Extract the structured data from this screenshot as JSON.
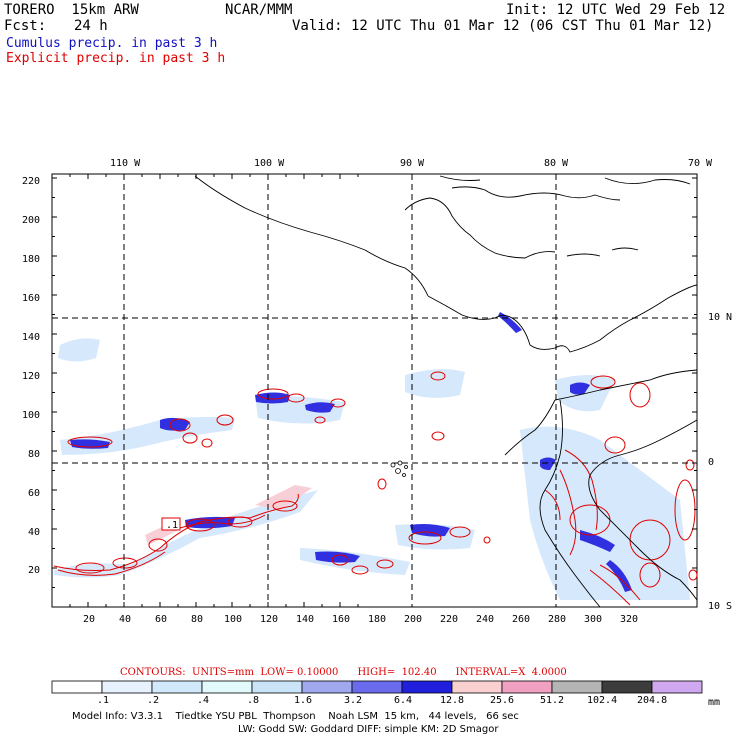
{
  "header": {
    "model": "TORERO  15km ARW",
    "org": "NCAR/MMM",
    "init": "Init: 12 UTC Wed 29 Feb 12",
    "fcst_label": "Fcst:",
    "fcst_value": "24 h",
    "valid": "Valid: 12 UTC Thu 01 Mar 12 (06 CST Thu 01 Mar 12)",
    "cumulus": "Cumulus precip. in past 3 h",
    "explicit": "Explicit precip. in past 3 h"
  },
  "colors": {
    "cumulus_text": "#1010c0",
    "explicit_text": "#e00000",
    "contour": "#e00000"
  },
  "top_lon_labels": [
    "110 W",
    "100 W",
    "90 W",
    "80 W",
    "70 W"
  ],
  "right_lat_labels": [
    "10 N",
    "0",
    "10 S"
  ],
  "y_ticks": [
    "20",
    "40",
    "60",
    "80",
    "100",
    "120",
    "140",
    "160",
    "180",
    "200",
    "220"
  ],
  "x_ticks": [
    "20",
    "40",
    "60",
    "80",
    "100",
    "120",
    "140",
    "160",
    "180",
    "200",
    "220",
    "240",
    "260",
    "280",
    "300",
    "320"
  ],
  "high_marker": ".1",
  "contour_info": "CONTOURS:  UNITS=mm  LOW= 0.10000      HIGH=  102.40      INTERVAL=X  4.0000",
  "colorbar": {
    "labels": [
      ".1",
      ".2",
      ".4",
      ".8",
      "1.6",
      "3.2",
      "6.4",
      "12.8",
      "25.6",
      "51.2",
      "102.4",
      "204.8"
    ],
    "unit": "mm",
    "colors": [
      "#ffffff",
      "#e8f2ff",
      "#d2e9fb",
      "#e2fafc",
      "#c9e4f7",
      "#a0a8ee",
      "#6a6aec",
      "#2020dc",
      "#f8d0d0",
      "#f0a0c0",
      "#b4b4b4",
      "#3c3c3c",
      "#d0a8f0"
    ]
  },
  "footer": {
    "line1": "Model Info: V3.3.1    Tiedtke YSU PBL  Thompson    Noah LSM  15 km,   44 levels,   66 sec",
    "line2": "LW: Godd SW: Goddard DIFF: simple KM: 2D Smagor"
  }
}
